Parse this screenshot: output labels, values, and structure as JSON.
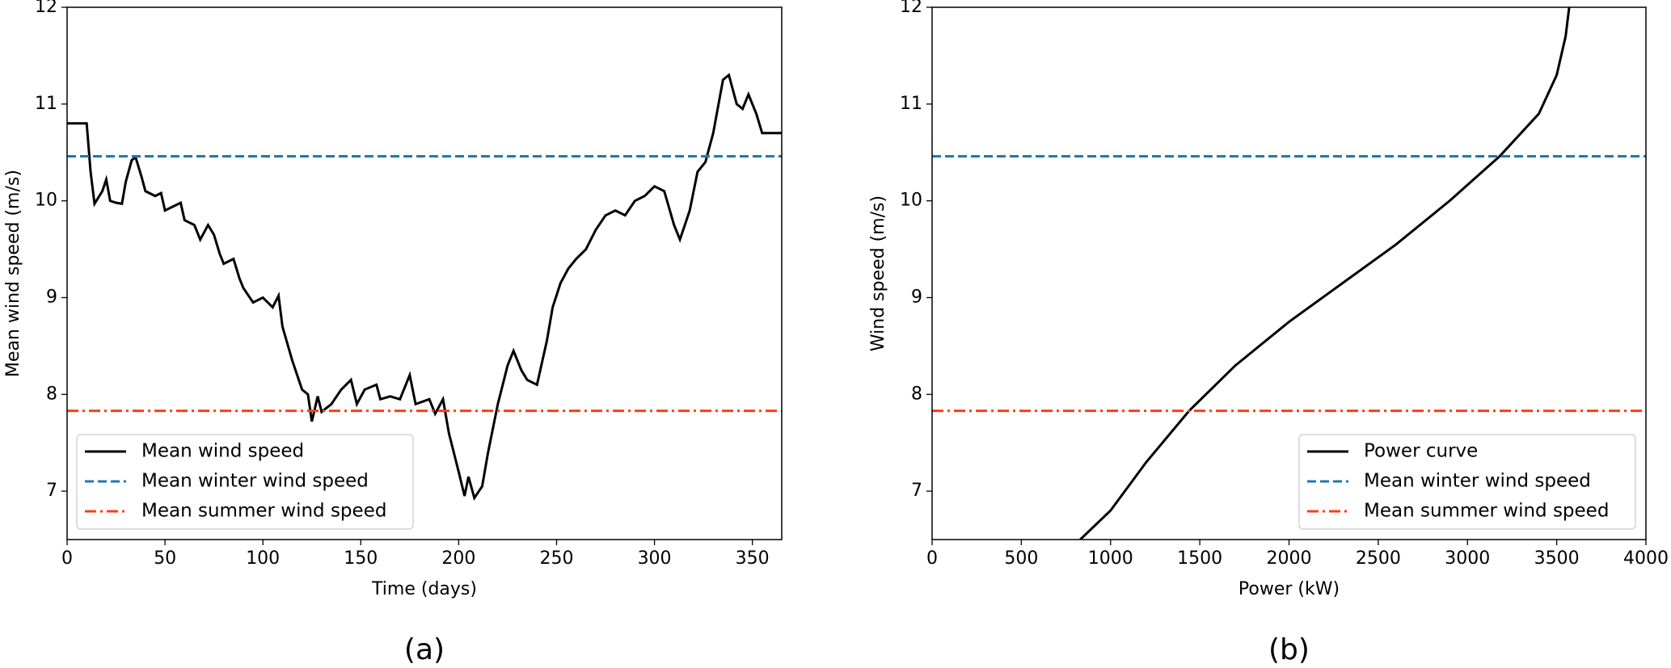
{
  "chart_data": [
    {
      "type": "line",
      "caption": "(a)",
      "xlabel": "Time (days)",
      "ylabel": "Mean wind speed (m/s)",
      "xlim": [
        0,
        365
      ],
      "xticks": [
        0,
        50,
        100,
        150,
        200,
        250,
        300,
        350
      ],
      "ylim": [
        6.5,
        12
      ],
      "yticks": [
        7,
        8,
        9,
        10,
        11,
        12
      ],
      "legend": "lower left",
      "series": [
        {
          "name": "Mean wind speed",
          "color": "#000000",
          "linestyle": "solid",
          "x": [
            0,
            10,
            12,
            14,
            18,
            20,
            22,
            25,
            28,
            30,
            33,
            35,
            38,
            40,
            45,
            48,
            50,
            55,
            58,
            60,
            65,
            68,
            72,
            75,
            78,
            80,
            85,
            88,
            90,
            95,
            100,
            105,
            108,
            110,
            115,
            120,
            123,
            125,
            128,
            130,
            135,
            140,
            145,
            148,
            152,
            158,
            160,
            165,
            170,
            175,
            178,
            185,
            188,
            192,
            195,
            200,
            203,
            205,
            208,
            212,
            215,
            220,
            225,
            228,
            232,
            235,
            240,
            245,
            248,
            252,
            256,
            260,
            265,
            270,
            275,
            280,
            285,
            290,
            295,
            300,
            305,
            310,
            313,
            318,
            322,
            326,
            330,
            335,
            338,
            342,
            345,
            348,
            352,
            355,
            360,
            365
          ],
          "values": [
            10.8,
            10.8,
            10.3,
            9.97,
            10.1,
            10.22,
            10.0,
            9.98,
            9.97,
            10.2,
            10.42,
            10.45,
            10.25,
            10.1,
            10.05,
            10.08,
            9.9,
            9.95,
            9.98,
            9.8,
            9.75,
            9.6,
            9.75,
            9.65,
            9.45,
            9.35,
            9.4,
            9.2,
            9.1,
            8.95,
            9.0,
            8.9,
            9.02,
            8.7,
            8.35,
            8.05,
            8.0,
            7.72,
            7.98,
            7.82,
            7.9,
            8.05,
            8.15,
            7.9,
            8.05,
            8.1,
            7.95,
            7.98,
            7.95,
            8.2,
            7.9,
            7.95,
            7.8,
            7.95,
            7.6,
            7.2,
            6.95,
            7.15,
            6.93,
            7.05,
            7.4,
            7.9,
            8.3,
            8.45,
            8.25,
            8.15,
            8.1,
            8.55,
            8.9,
            9.15,
            9.3,
            9.4,
            9.5,
            9.7,
            9.85,
            9.9,
            9.85,
            10.0,
            10.05,
            10.15,
            10.1,
            9.75,
            9.6,
            9.9,
            10.3,
            10.4,
            10.7,
            11.25,
            11.3,
            11.0,
            10.95,
            11.1,
            10.9,
            10.7,
            10.7,
            10.7
          ]
        },
        {
          "name": "Mean winter wind speed",
          "color": "#1f77b4",
          "linestyle": "dashed",
          "values": [
            10.46
          ]
        },
        {
          "name": "Mean summer wind speed",
          "color": "#ff3c14",
          "linestyle": "dashdot",
          "values": [
            7.83
          ]
        }
      ]
    },
    {
      "type": "line",
      "caption": "(b)",
      "xlabel": "Power (kW)",
      "ylabel": "Wind speed (m/s)",
      "xlim": [
        0,
        4000
      ],
      "xticks": [
        0,
        500,
        1000,
        1500,
        2000,
        2500,
        3000,
        3500,
        4000
      ],
      "ylim": [
        6.5,
        12
      ],
      "yticks": [
        7,
        8,
        9,
        10,
        11,
        12
      ],
      "legend": "lower right",
      "series": [
        {
          "name": "Power curve",
          "color": "#000000",
          "linestyle": "solid",
          "x": [
            830,
            1000,
            1200,
            1440,
            1700,
            2000,
            2300,
            2600,
            2900,
            3180,
            3400,
            3500,
            3550,
            3570
          ],
          "values": [
            6.5,
            6.8,
            7.3,
            7.83,
            8.3,
            8.75,
            9.15,
            9.55,
            10.0,
            10.46,
            10.9,
            11.3,
            11.7,
            12
          ]
        },
        {
          "name": "Mean winter wind speed",
          "color": "#1f77b4",
          "linestyle": "dashed",
          "values": [
            10.46
          ]
        },
        {
          "name": "Mean summer wind speed",
          "color": "#ff3c14",
          "linestyle": "dashdot",
          "values": [
            7.83
          ]
        }
      ]
    }
  ]
}
